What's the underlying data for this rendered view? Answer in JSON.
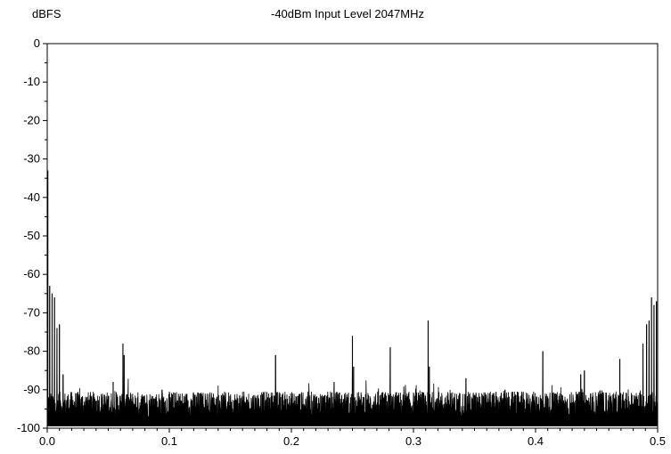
{
  "chart_data": {
    "type": "line",
    "title": "-40dBm Input Level 2047MHz",
    "ylabel": "dBFS",
    "xlabel": "",
    "xlim": [
      0,
      0.5
    ],
    "ylim": [
      -100,
      0
    ],
    "x_ticks": [
      {
        "value": 0.0,
        "label": "0.0"
      },
      {
        "value": 0.1,
        "label": "0.1"
      },
      {
        "value": 0.2,
        "label": "0.2"
      },
      {
        "value": 0.3,
        "label": "0.3"
      },
      {
        "value": 0.4,
        "label": "0.4"
      },
      {
        "value": 0.5,
        "label": "0.5"
      }
    ],
    "y_ticks": [
      {
        "value": 0,
        "label": "0"
      },
      {
        "value": -10,
        "label": "-10"
      },
      {
        "value": -20,
        "label": "-20"
      },
      {
        "value": -30,
        "label": "-30"
      },
      {
        "value": -40,
        "label": "-40"
      },
      {
        "value": -50,
        "label": "-50"
      },
      {
        "value": -60,
        "label": "-60"
      },
      {
        "value": -70,
        "label": "-70"
      },
      {
        "value": -80,
        "label": "-80"
      },
      {
        "value": -90,
        "label": "-90"
      },
      {
        "value": -100,
        "label": "-100"
      }
    ],
    "grid": false,
    "noise_floor_dbfs": -95,
    "series": [
      {
        "color": "#000000",
        "peaks": [
          {
            "x": 0.0005,
            "y": -33
          },
          {
            "x": 0.002,
            "y": -63
          },
          {
            "x": 0.004,
            "y": -65
          },
          {
            "x": 0.006,
            "y": -66
          },
          {
            "x": 0.008,
            "y": -74
          },
          {
            "x": 0.01,
            "y": -73
          },
          {
            "x": 0.013,
            "y": -86
          },
          {
            "x": 0.054,
            "y": -88
          },
          {
            "x": 0.062,
            "y": -78
          },
          {
            "x": 0.063,
            "y": -81
          },
          {
            "x": 0.094,
            "y": -90
          },
          {
            "x": 0.187,
            "y": -81
          },
          {
            "x": 0.235,
            "y": -88
          },
          {
            "x": 0.25,
            "y": -76
          },
          {
            "x": 0.251,
            "y": -84
          },
          {
            "x": 0.281,
            "y": -79
          },
          {
            "x": 0.312,
            "y": -72
          },
          {
            "x": 0.313,
            "y": -84
          },
          {
            "x": 0.343,
            "y": -87
          },
          {
            "x": 0.375,
            "y": -90
          },
          {
            "x": 0.406,
            "y": -80
          },
          {
            "x": 0.437,
            "y": -86
          },
          {
            "x": 0.44,
            "y": -85
          },
          {
            "x": 0.469,
            "y": -82
          },
          {
            "x": 0.488,
            "y": -78
          },
          {
            "x": 0.491,
            "y": -73
          },
          {
            "x": 0.493,
            "y": -72
          },
          {
            "x": 0.495,
            "y": -66
          },
          {
            "x": 0.497,
            "y": -68
          },
          {
            "x": 0.499,
            "y": -67
          }
        ]
      }
    ]
  }
}
